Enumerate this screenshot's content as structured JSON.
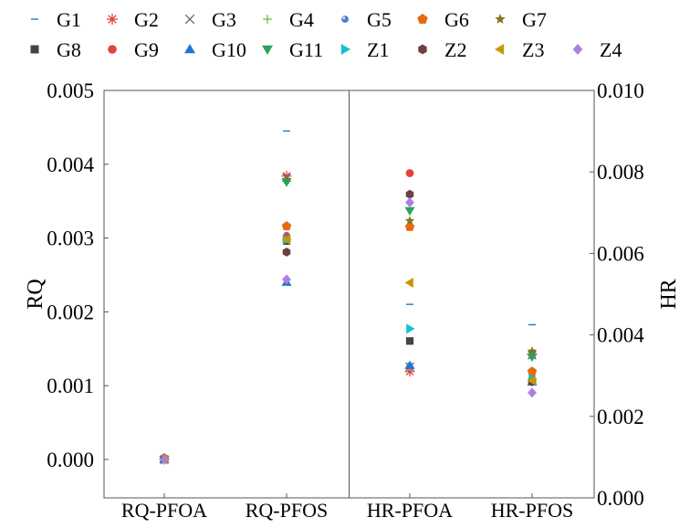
{
  "chart_data": {
    "type": "scatter",
    "title": "",
    "xlabel": "",
    "categories": [
      "RQ-PFOA",
      "RQ-PFOS",
      "HR-PFOA",
      "HR-PFOS"
    ],
    "left_axis": {
      "label": "RQ",
      "range": [
        -0.00052,
        0.005
      ],
      "ticks": [
        0.0,
        0.001,
        0.002,
        0.003,
        0.004,
        0.005
      ],
      "tick_labels": [
        "0.000",
        "0.001",
        "0.002",
        "0.003",
        "0.004",
        "0.005"
      ],
      "applies_to": [
        "RQ-PFOA",
        "RQ-PFOS"
      ]
    },
    "right_axis": {
      "label": "HR",
      "range": [
        0.0,
        0.01
      ],
      "ticks": [
        0.0,
        0.002,
        0.004,
        0.006,
        0.008,
        0.01
      ],
      "tick_labels": [
        "0.000",
        "0.002",
        "0.004",
        "0.006",
        "0.008",
        "0.010"
      ],
      "applies_to": [
        "HR-PFOA",
        "HR-PFOS"
      ]
    },
    "grid": false,
    "legend_position": "top",
    "series": [
      {
        "name": "G1",
        "marker": "dash",
        "color": "#1f77d4",
        "values": [
          0.0,
          0.00445,
          0.00475,
          0.00425
        ]
      },
      {
        "name": "G2",
        "marker": "asterisk",
        "color": "#e2433b",
        "values": [
          0.0,
          0.00384,
          0.0031,
          0.00352
        ]
      },
      {
        "name": "G3",
        "marker": "x",
        "color": "#666666",
        "values": [
          0.0,
          0.00382,
          0.00322,
          0.0035
        ]
      },
      {
        "name": "G4",
        "marker": "plus",
        "color": "#6cbf3a",
        "values": [
          0.0,
          0.00296,
          0.00322,
          0.0035
        ]
      },
      {
        "name": "G5",
        "marker": "sphere",
        "color": "#4a7fc1",
        "values": [
          0.0,
          0.00304,
          0.00324,
          0.003
        ]
      },
      {
        "name": "G6",
        "marker": "pentagon",
        "color": "#e66b0f",
        "values": [
          2e-05,
          0.00316,
          0.00665,
          0.0031
        ]
      },
      {
        "name": "G7",
        "marker": "star",
        "color": "#807a1c",
        "values": [
          0.0,
          0.00379,
          0.0068,
          0.0036
        ]
      },
      {
        "name": "G8",
        "marker": "square",
        "color": "#444444",
        "values": [
          0.0,
          0.00296,
          0.00385,
          0.00285
        ]
      },
      {
        "name": "G9",
        "marker": "circle",
        "color": "#e2433b",
        "values": [
          0.0,
          0.00302,
          0.00797,
          0.00285
        ]
      },
      {
        "name": "G10",
        "marker": "triangle",
        "color": "#1f77d4",
        "values": [
          0.0,
          0.0024,
          0.00325,
          0.00284
        ]
      },
      {
        "name": "G11",
        "marker": "tri-down",
        "color": "#2ea05d",
        "values": [
          0.0,
          0.00376,
          0.00705,
          0.00346
        ]
      },
      {
        "name": "Z1",
        "marker": "tri-right",
        "color": "#17becf",
        "values": [
          0.0,
          0.00298,
          0.00415,
          0.00292
        ]
      },
      {
        "name": "Z2",
        "marker": "hexagon",
        "color": "#6b4242",
        "values": [
          0.0,
          0.00281,
          0.00745,
          0.00285
        ]
      },
      {
        "name": "Z3",
        "marker": "tri-left",
        "color": "#c49a00",
        "values": [
          0.0,
          0.00298,
          0.00528,
          0.00288
        ]
      },
      {
        "name": "Z4",
        "marker": "diamond",
        "color": "#b07ee0",
        "values": [
          0.0,
          0.00244,
          0.00725,
          0.00258
        ]
      }
    ]
  }
}
